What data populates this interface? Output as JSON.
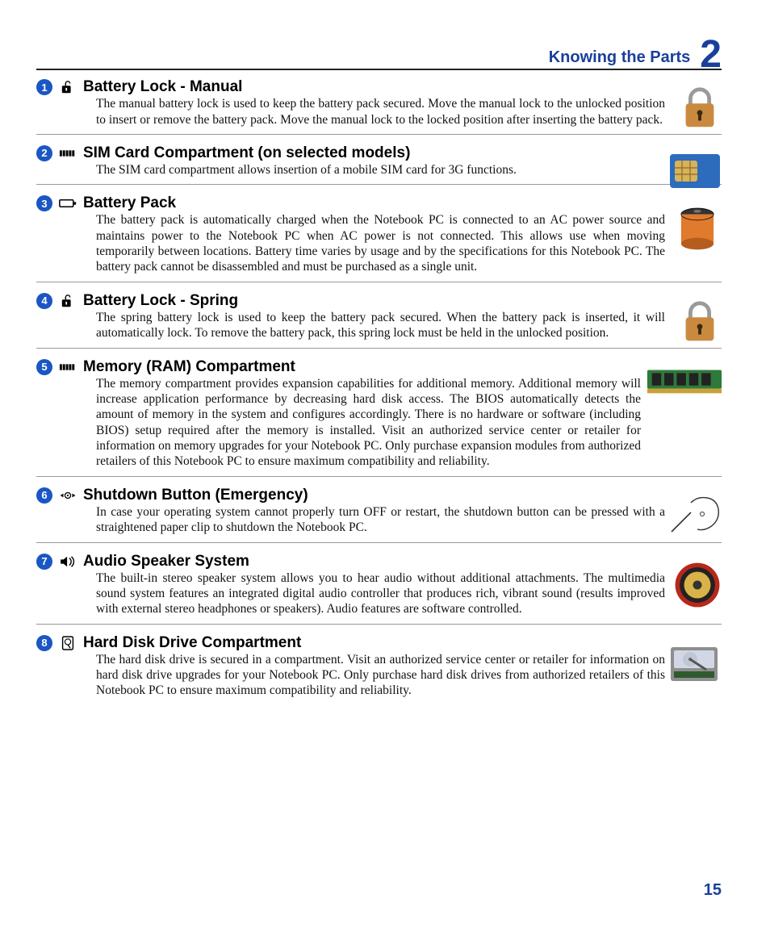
{
  "header": {
    "chapter_title": "Knowing the Parts",
    "chapter_number": "2"
  },
  "colors": {
    "accent": "#1a3f9c",
    "badge_bg": "#1a56c4",
    "badge_fg": "#ffffff",
    "text": "#000000",
    "rule": "#999999",
    "padlock_body": "#c98a3f",
    "padlock_shackle": "#9a9a9a",
    "sim_back": "#2d6bbd",
    "sim_chip": "#d7b35a",
    "battery_body": "#e07a2d",
    "battery_cap": "#333333",
    "ram_pcb": "#2e7a3a",
    "ram_chip": "#222222",
    "speaker_rim": "#b8271b",
    "speaker_cone": "#d9b24a",
    "hdd_body": "#8e8e8e",
    "hdd_label": "#d1d7e4"
  },
  "sections": [
    {
      "num": "1",
      "icon": "lock-open",
      "title": "Battery Lock - Manual",
      "body": "The manual battery lock is used to keep the battery pack secured. Move the manual lock to the unlocked position to insert or remove the battery pack. Move the manual lock to the locked position after inserting the battery pack.",
      "illus": "padlock"
    },
    {
      "num": "2",
      "icon": "grill",
      "title": "SIM Card Compartment (on selected models)",
      "body": "The SIM card compartment allows insertion of a mobile SIM card for 3G functions.",
      "illus": "sim"
    },
    {
      "num": "3",
      "icon": "battery-outline",
      "title": "Battery Pack",
      "body": "The battery pack is automatically charged when the Notebook PC is connected to an AC power source and maintains power to the Notebook PC when AC power is not connected. This allows use when moving temporarily between locations. Battery time varies by usage and by the specifications for this Notebook PC. The battery pack cannot be disassembled and must be purchased as a single unit.",
      "illus": "d-battery"
    },
    {
      "num": "4",
      "icon": "lock-open",
      "title": "Battery Lock - Spring",
      "body": "The spring battery lock is used to keep the battery pack secured. When the battery pack is inserted, it will automatically lock. To remove the battery pack, this spring lock must be held in the unlocked position.",
      "illus": "padlock"
    },
    {
      "num": "5",
      "icon": "grill",
      "title": "Memory (RAM) Compartment",
      "body": "The memory compartment provides expansion capabilities for additional memory. Additional memory will increase application performance by decreasing hard disk access. The BIOS automatically detects the amount of memory in the system and configures accordingly. There is no hardware or software (including BIOS) setup required after the memory is installed. Visit an authorized service center or retailer for information on memory upgrades for your Notebook PC. Only purchase expansion modules from authorized retailers of this Notebook PC to ensure maximum compatibility and reliability.",
      "illus": "ram"
    },
    {
      "num": "6",
      "icon": "pinhole",
      "title": "Shutdown Button (Emergency)",
      "body": "In case your operating system cannot properly turn OFF or restart, the shutdown button can be pressed with a straightened paper clip to shutdown the Notebook PC.",
      "illus": "hand-clip"
    },
    {
      "num": "7",
      "icon": "speaker",
      "title": "Audio Speaker System",
      "body": "The built-in stereo speaker system allows you to hear audio without additional attachments. The multimedia sound system features an integrated digital audio controller that produces rich, vibrant sound (results improved with external stereo headphones or speakers). Audio features are software controlled.",
      "illus": "speaker-illus"
    },
    {
      "num": "8",
      "icon": "hdd-outline",
      "title": "Hard Disk Drive Compartment",
      "body": "The hard disk drive is secured in a compartment. Visit an authorized service center or retailer for information on hard disk drive upgrades for your Notebook PC. Only purchase hard disk drives from authorized retailers of this Notebook PC to ensure maximum compatibility and reliability.",
      "illus": "hdd"
    }
  ],
  "page_number": "15"
}
